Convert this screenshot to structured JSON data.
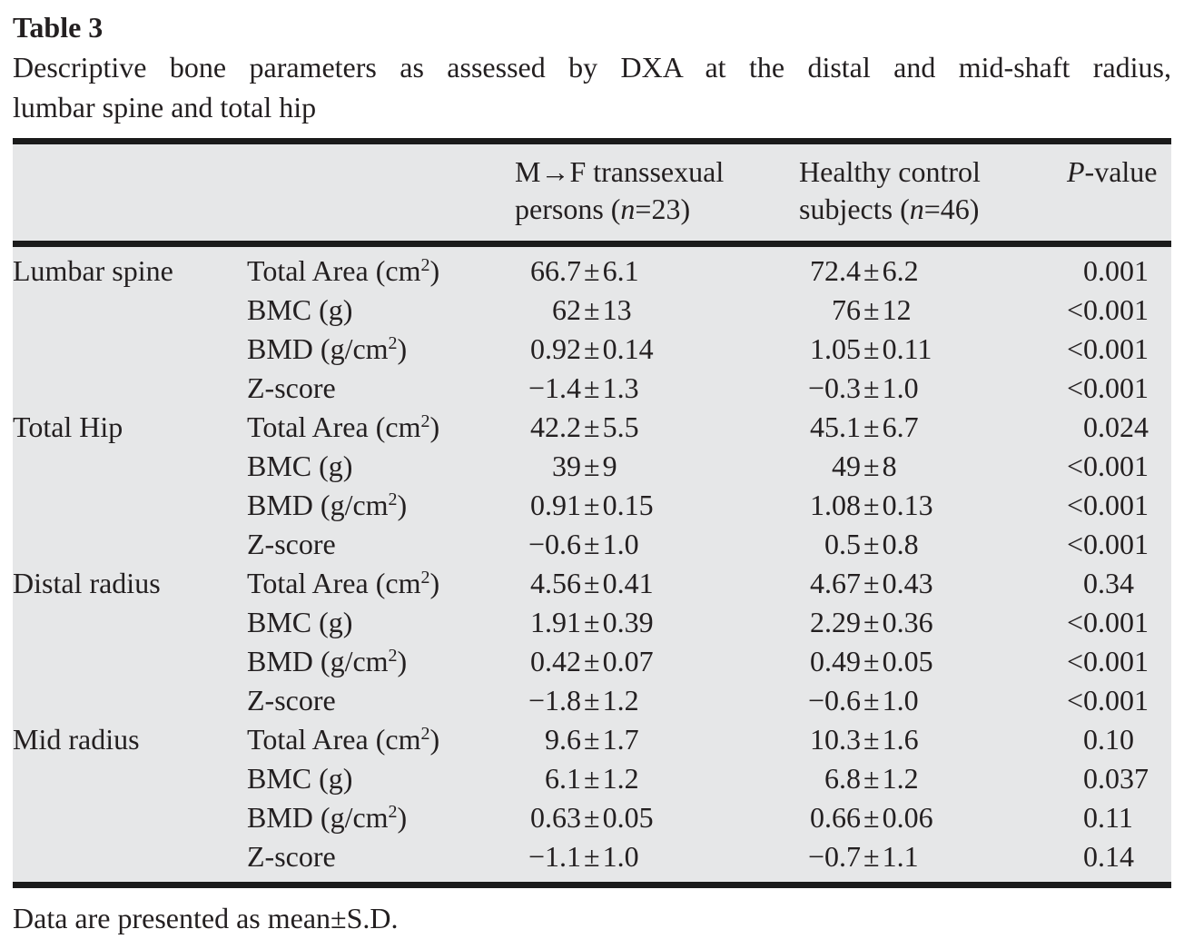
{
  "page": {
    "table_label": "Table 3",
    "caption_line1": "Descriptive bone parameters as assessed by DXA at the distal and mid-shaft radius,",
    "caption_line2": "lumbar spine and total hip",
    "footnote": "Data are presented as mean±S.D."
  },
  "colors": {
    "table_background": "#e6e7e8",
    "rule": "#1b1b1b",
    "text": "#231f20"
  },
  "table": {
    "pm_sign": "±",
    "columns": {
      "group": "",
      "parameter": "",
      "mf": {
        "line1": "M→F transsexual",
        "line2_pre": "persons (",
        "line2_n": "n",
        "line2_post": "=23)"
      },
      "hc": {
        "line1": "Healthy control",
        "line2_pre": "subjects (",
        "line2_n": "n",
        "line2_post": "=46)"
      },
      "p": {
        "italic": "P",
        "rest": "-value"
      }
    },
    "rows": [
      {
        "group": "Lumbar spine",
        "param_pre": "Total Area (cm",
        "param_sup": "2",
        "param_post": ")",
        "mf": {
          "l": "66.7",
          "r": "6.1"
        },
        "hc": {
          "l": "72.4",
          "r": "6.2"
        },
        "p": {
          "pfx": "",
          "v": "0.001"
        }
      },
      {
        "group": "",
        "param_pre": "BMC (g)",
        "param_sup": "",
        "param_post": "",
        "mf": {
          "l": "62",
          "r": "13"
        },
        "hc": {
          "l": "76",
          "r": "12"
        },
        "p": {
          "pfx": "<",
          "v": "0.001"
        }
      },
      {
        "group": "",
        "param_pre": "BMD (g/cm",
        "param_sup": "2",
        "param_post": ")",
        "mf": {
          "l": "0.92",
          "r": "0.14"
        },
        "hc": {
          "l": "1.05",
          "r": "0.11"
        },
        "p": {
          "pfx": "<",
          "v": "0.001"
        }
      },
      {
        "group": "",
        "param_pre": "Z-score",
        "param_sup": "",
        "param_post": "",
        "mf": {
          "l": "−1.4",
          "r": "1.3"
        },
        "hc": {
          "l": "−0.3",
          "r": "1.0"
        },
        "p": {
          "pfx": "<",
          "v": "0.001"
        }
      },
      {
        "group": "Total Hip",
        "param_pre": "Total Area (cm",
        "param_sup": "2",
        "param_post": ")",
        "mf": {
          "l": "42.2",
          "r": "5.5"
        },
        "hc": {
          "l": "45.1",
          "r": "6.7"
        },
        "p": {
          "pfx": "",
          "v": "0.024"
        }
      },
      {
        "group": "",
        "param_pre": "BMC (g)",
        "param_sup": "",
        "param_post": "",
        "mf": {
          "l": "39",
          "r": "9"
        },
        "hc": {
          "l": "49",
          "r": "8"
        },
        "p": {
          "pfx": "<",
          "v": "0.001"
        }
      },
      {
        "group": "",
        "param_pre": "BMD (g/cm",
        "param_sup": "2",
        "param_post": ")",
        "mf": {
          "l": "0.91",
          "r": "0.15"
        },
        "hc": {
          "l": "1.08",
          "r": "0.13"
        },
        "p": {
          "pfx": "<",
          "v": "0.001"
        }
      },
      {
        "group": "",
        "param_pre": "Z-score",
        "param_sup": "",
        "param_post": "",
        "mf": {
          "l": "−0.6",
          "r": "1.0"
        },
        "hc": {
          "l": "0.5",
          "r": "0.8"
        },
        "p": {
          "pfx": "<",
          "v": "0.001"
        }
      },
      {
        "group": "Distal radius",
        "param_pre": "Total Area (cm",
        "param_sup": "2",
        "param_post": ")",
        "mf": {
          "l": "4.56",
          "r": "0.41"
        },
        "hc": {
          "l": "4.67",
          "r": "0.43"
        },
        "p": {
          "pfx": "",
          "v": "0.34"
        }
      },
      {
        "group": "",
        "param_pre": "BMC (g)",
        "param_sup": "",
        "param_post": "",
        "mf": {
          "l": "1.91",
          "r": "0.39"
        },
        "hc": {
          "l": "2.29",
          "r": "0.36"
        },
        "p": {
          "pfx": "<",
          "v": "0.001"
        }
      },
      {
        "group": "",
        "param_pre": "BMD (g/cm",
        "param_sup": "2",
        "param_post": ")",
        "mf": {
          "l": "0.42",
          "r": "0.07"
        },
        "hc": {
          "l": "0.49",
          "r": "0.05"
        },
        "p": {
          "pfx": "<",
          "v": "0.001"
        }
      },
      {
        "group": "",
        "param_pre": "Z-score",
        "param_sup": "",
        "param_post": "",
        "mf": {
          "l": "−1.8",
          "r": "1.2"
        },
        "hc": {
          "l": "−0.6",
          "r": "1.0"
        },
        "p": {
          "pfx": "<",
          "v": "0.001"
        }
      },
      {
        "group": "Mid radius",
        "param_pre": "Total Area (cm",
        "param_sup": "2",
        "param_post": ")",
        "mf": {
          "l": "9.6",
          "r": "1.7"
        },
        "hc": {
          "l": "10.3",
          "r": "1.6"
        },
        "p": {
          "pfx": "",
          "v": "0.10"
        }
      },
      {
        "group": "",
        "param_pre": "BMC (g)",
        "param_sup": "",
        "param_post": "",
        "mf": {
          "l": "6.1",
          "r": "1.2"
        },
        "hc": {
          "l": "6.8",
          "r": "1.2"
        },
        "p": {
          "pfx": "",
          "v": "0.037"
        }
      },
      {
        "group": "",
        "param_pre": "BMD (g/cm",
        "param_sup": "2",
        "param_post": ")",
        "mf": {
          "l": "0.63",
          "r": "0.05"
        },
        "hc": {
          "l": "0.66",
          "r": "0.06"
        },
        "p": {
          "pfx": "",
          "v": "0.11"
        }
      },
      {
        "group": "",
        "param_pre": "Z-score",
        "param_sup": "",
        "param_post": "",
        "mf": {
          "l": "−1.1",
          "r": "1.0"
        },
        "hc": {
          "l": "−0.7",
          "r": "1.1"
        },
        "p": {
          "pfx": "",
          "v": "0.14"
        }
      }
    ]
  }
}
